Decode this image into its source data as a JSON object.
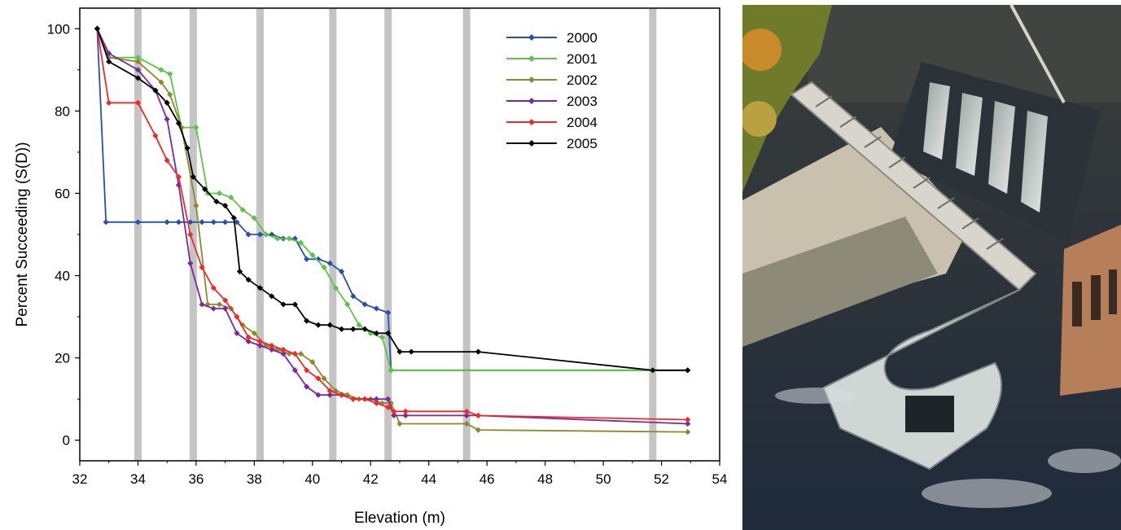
{
  "chart_data": {
    "type": "line",
    "title": "",
    "xlabel": "Elevation (m)",
    "ylabel": "Percent Succeeding (S(D))",
    "xlim": [
      32,
      54
    ],
    "ylim": [
      -5,
      105
    ],
    "xticks": [
      32,
      34,
      36,
      38,
      40,
      42,
      44,
      46,
      48,
      50,
      52,
      54
    ],
    "yticks": [
      0,
      20,
      40,
      60,
      80,
      100
    ],
    "grid": false,
    "legend_position": "top-right",
    "barrier_elevations": [
      34.0,
      35.9,
      38.2,
      40.7,
      42.6,
      45.3,
      51.7
    ],
    "series": [
      {
        "name": "2000",
        "color": "#2b4fa8",
        "x": [
          32.6,
          32.9,
          34.0,
          35.0,
          35.4,
          35.8,
          36.2,
          36.6,
          37.0,
          37.4,
          37.8,
          38.2,
          38.6,
          39.0,
          39.4,
          39.8,
          40.2,
          40.6,
          41.0,
          41.4,
          41.8,
          42.2,
          42.6,
          42.7,
          52.9
        ],
        "y": [
          100,
          53,
          53,
          53,
          53,
          53,
          53,
          53,
          53,
          53,
          50,
          50,
          50,
          49,
          49,
          44,
          44,
          43,
          41,
          35,
          33,
          32,
          31,
          17,
          17
        ]
      },
      {
        "name": "2001",
        "color": "#5ec24a",
        "x": [
          32.6,
          33.0,
          34.0,
          34.8,
          35.1,
          35.5,
          36.0,
          36.4,
          36.8,
          37.2,
          37.6,
          38.0,
          38.4,
          38.8,
          39.2,
          39.6,
          40.0,
          40.4,
          40.8,
          41.2,
          41.6,
          42.0,
          42.4,
          42.7,
          52.9
        ],
        "y": [
          100,
          93,
          93,
          90,
          89,
          76,
          76,
          60,
          60,
          59,
          56,
          54,
          50,
          49,
          49,
          48,
          45,
          42,
          37,
          33,
          28,
          26,
          25,
          17,
          17
        ]
      },
      {
        "name": "2002",
        "color": "#8a8a2a",
        "x": [
          32.6,
          33.0,
          34.0,
          34.8,
          35.1,
          35.5,
          36.0,
          36.4,
          36.8,
          37.2,
          37.6,
          38.0,
          38.4,
          38.8,
          39.2,
          39.6,
          40.0,
          40.4,
          40.8,
          41.2,
          41.6,
          42.0,
          42.4,
          42.7,
          43.0,
          45.3,
          45.7,
          52.9
        ],
        "y": [
          100,
          93,
          92,
          87,
          84,
          76,
          57,
          33,
          33,
          32,
          28,
          26,
          23,
          22,
          21,
          21,
          19,
          15,
          12,
          11,
          10,
          10,
          9,
          9,
          4,
          4,
          2.5,
          2
        ]
      },
      {
        "name": "2003",
        "color": "#7a2a9a",
        "x": [
          32.6,
          33.0,
          34.0,
          34.6,
          35.0,
          35.4,
          35.8,
          36.2,
          36.6,
          37.0,
          37.4,
          37.8,
          38.2,
          38.6,
          39.0,
          39.4,
          39.8,
          40.2,
          40.6,
          41.0,
          41.4,
          41.8,
          42.2,
          42.6,
          42.8,
          43.2,
          45.3,
          45.7,
          52.9
        ],
        "y": [
          100,
          94,
          90,
          85,
          78,
          62,
          43,
          33,
          32,
          32,
          26,
          24,
          23,
          22,
          21,
          17,
          13,
          11,
          11,
          11,
          10,
          10,
          10,
          10,
          6,
          6,
          6,
          6,
          4
        ]
      },
      {
        "name": "2004",
        "color": "#ee2a2a",
        "x": [
          32.6,
          33.0,
          34.0,
          34.6,
          35.0,
          35.4,
          35.8,
          36.2,
          36.6,
          37.0,
          37.4,
          37.8,
          38.2,
          38.6,
          39.0,
          39.4,
          39.8,
          40.2,
          40.6,
          41.0,
          41.4,
          41.8,
          42.2,
          42.6,
          42.8,
          43.2,
          45.3,
          45.7,
          52.9
        ],
        "y": [
          100,
          82,
          82,
          74,
          68,
          64,
          50,
          42,
          37,
          34,
          30,
          25,
          24,
          23,
          22,
          21,
          17,
          15,
          12,
          11,
          10,
          10,
          9,
          8,
          7,
          7,
          7,
          6,
          5
        ]
      },
      {
        "name": "2005",
        "color": "#000000",
        "x": [
          32.6,
          33.0,
          34.0,
          34.6,
          35.0,
          35.4,
          35.7,
          35.9,
          36.3,
          36.7,
          37.0,
          37.3,
          37.5,
          37.8,
          38.2,
          38.6,
          39.0,
          39.4,
          39.8,
          40.2,
          40.6,
          41.0,
          41.4,
          41.8,
          42.2,
          42.6,
          43.0,
          43.4,
          45.7,
          51.7,
          52.9
        ],
        "y": [
          100,
          92,
          88,
          85,
          82,
          77,
          71,
          64,
          61,
          58,
          57,
          54,
          41,
          39,
          37,
          35,
          33,
          33,
          29,
          28,
          28,
          27,
          27,
          27,
          26,
          26,
          21.5,
          21.5,
          21.5,
          17,
          17
        ]
      }
    ]
  },
  "photo": {
    "subject": "aerial-view-of-dam-with-fish-ladder"
  }
}
